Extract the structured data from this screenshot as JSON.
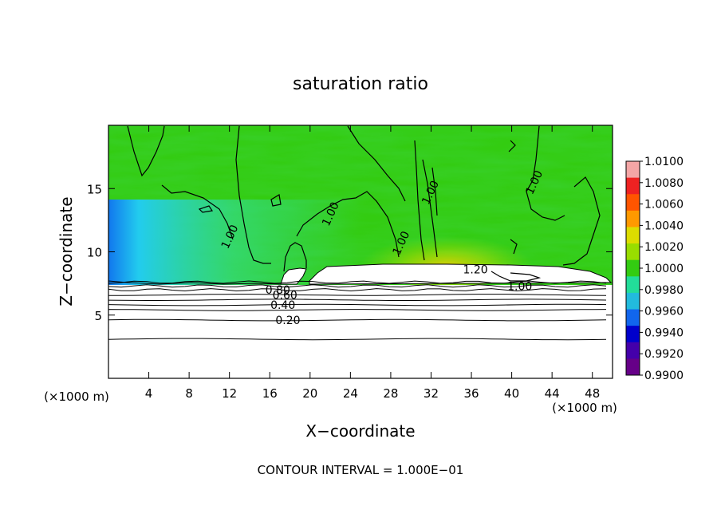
{
  "chart_data": {
    "type": "heatmap",
    "title": "saturation ratio",
    "xlabel": "X−coordinate",
    "ylabel": "Z−coordinate",
    "x_unit_left": "(×1000 m)",
    "x_unit_right": "(×1000 m)",
    "xlim": [
      0,
      50
    ],
    "ylim": [
      0,
      20
    ],
    "x_ticks": [
      4,
      8,
      12,
      16,
      20,
      24,
      28,
      32,
      36,
      40,
      44,
      48
    ],
    "y_ticks": [
      5,
      10,
      15
    ],
    "footer": "CONTOUR INTERVAL = 1.000E−01",
    "colorbar": {
      "labels": [
        "1.0100",
        "1.0080",
        "1.0060",
        "1.0040",
        "1.0020",
        "1.0000",
        "0.9980",
        "0.9960",
        "0.9940",
        "0.9920",
        "0.9900"
      ],
      "colors": [
        "#f4a6a6",
        "#ee2222",
        "#ff5500",
        "#ff9900",
        "#dddd00",
        "#99dd00",
        "#33cc11",
        "#22dd99",
        "#22bbdd",
        "#1166ee",
        "#0000cc",
        "#4400aa",
        "#660088"
      ]
    },
    "contour_labels": [
      {
        "text": "0.20",
        "x": 17.8,
        "z": 4.6
      },
      {
        "text": "0.40",
        "x": 17.3,
        "z": 5.8
      },
      {
        "text": "0.60",
        "x": 17.5,
        "z": 6.6
      },
      {
        "text": "0.80",
        "x": 16.8,
        "z": 7.0
      },
      {
        "text": "1.00",
        "x": 12.0,
        "z": 11.2
      },
      {
        "text": "1.00",
        "x": 22.0,
        "z": 13.0
      },
      {
        "text": "1.00",
        "x": 29.0,
        "z": 10.7
      },
      {
        "text": "1.00",
        "x": 31.9,
        "z": 14.7
      },
      {
        "text": "1.00",
        "x": 42.2,
        "z": 15.5
      },
      {
        "text": "1.20",
        "x": 36.4,
        "z": 8.6
      },
      {
        "text": "1.00",
        "x": 40.8,
        "z": 7.3
      }
    ],
    "contour_levels_z": [
      3.1,
      4.6,
      5.4,
      5.8,
      6.2,
      6.6,
      7.0,
      7.3,
      7.6
    ]
  }
}
